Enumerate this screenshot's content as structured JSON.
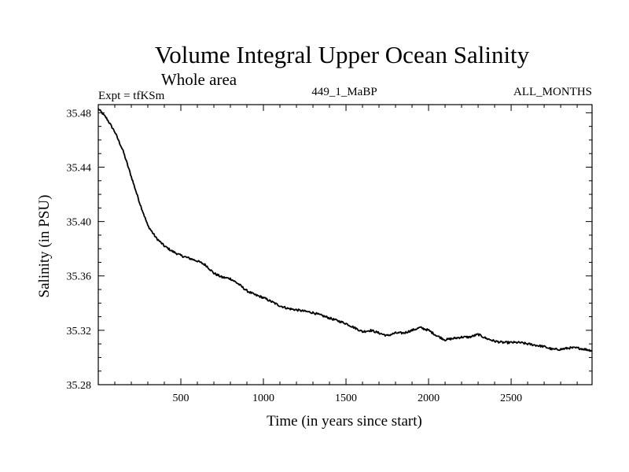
{
  "chart_data": {
    "type": "line",
    "title": "Volume Integral Upper Ocean Salinity",
    "subtitle": "Whole area",
    "experiment_label": "Expt = tfKSm",
    "run_label": "449_1_MaBP",
    "period_label": "ALL_MONTHS",
    "xlabel": "Time (in years since start)",
    "ylabel": "Salinity (in PSU)",
    "xlim": [
      0,
      2990
    ],
    "ylim": [
      35.28,
      35.486
    ],
    "x_ticks": [
      500,
      1000,
      1500,
      2000,
      2500
    ],
    "x_tick_labels": [
      "500",
      "1000",
      "1500",
      "2000",
      "2500"
    ],
    "y_ticks": [
      35.28,
      35.32,
      35.36,
      35.4,
      35.44,
      35.48
    ],
    "y_tick_labels": [
      "35.28",
      "35.32",
      "35.36",
      "35.40",
      "35.44",
      "35.48"
    ],
    "grid": false,
    "series": [
      {
        "name": "Salinity",
        "color": "#000000",
        "x": [
          0,
          50,
          100,
          150,
          200,
          250,
          300,
          350,
          400,
          450,
          500,
          550,
          600,
          650,
          700,
          750,
          800,
          850,
          900,
          950,
          1000,
          1050,
          1100,
          1150,
          1200,
          1250,
          1300,
          1350,
          1400,
          1450,
          1500,
          1550,
          1600,
          1650,
          1700,
          1750,
          1800,
          1850,
          1900,
          1950,
          2000,
          2050,
          2100,
          2150,
          2200,
          2250,
          2300,
          2350,
          2400,
          2450,
          2500,
          2550,
          2600,
          2650,
          2700,
          2750,
          2800,
          2850,
          2900,
          2950,
          2990
        ],
        "values": [
          35.483,
          35.476,
          35.466,
          35.452,
          35.433,
          35.414,
          35.397,
          35.388,
          35.382,
          35.378,
          35.375,
          35.373,
          35.371,
          35.368,
          35.362,
          35.359,
          35.358,
          35.354,
          35.349,
          35.346,
          35.344,
          35.341,
          35.338,
          35.336,
          35.335,
          35.334,
          35.333,
          35.331,
          35.329,
          35.327,
          35.325,
          35.322,
          35.319,
          35.32,
          35.318,
          35.316,
          35.318,
          35.318,
          35.32,
          35.322,
          35.32,
          35.316,
          35.313,
          35.314,
          35.315,
          35.315,
          35.317,
          35.314,
          35.312,
          35.311,
          35.311,
          35.311,
          35.31,
          35.309,
          35.308,
          35.306,
          35.306,
          35.307,
          35.307,
          35.306,
          35.305
        ]
      }
    ]
  }
}
